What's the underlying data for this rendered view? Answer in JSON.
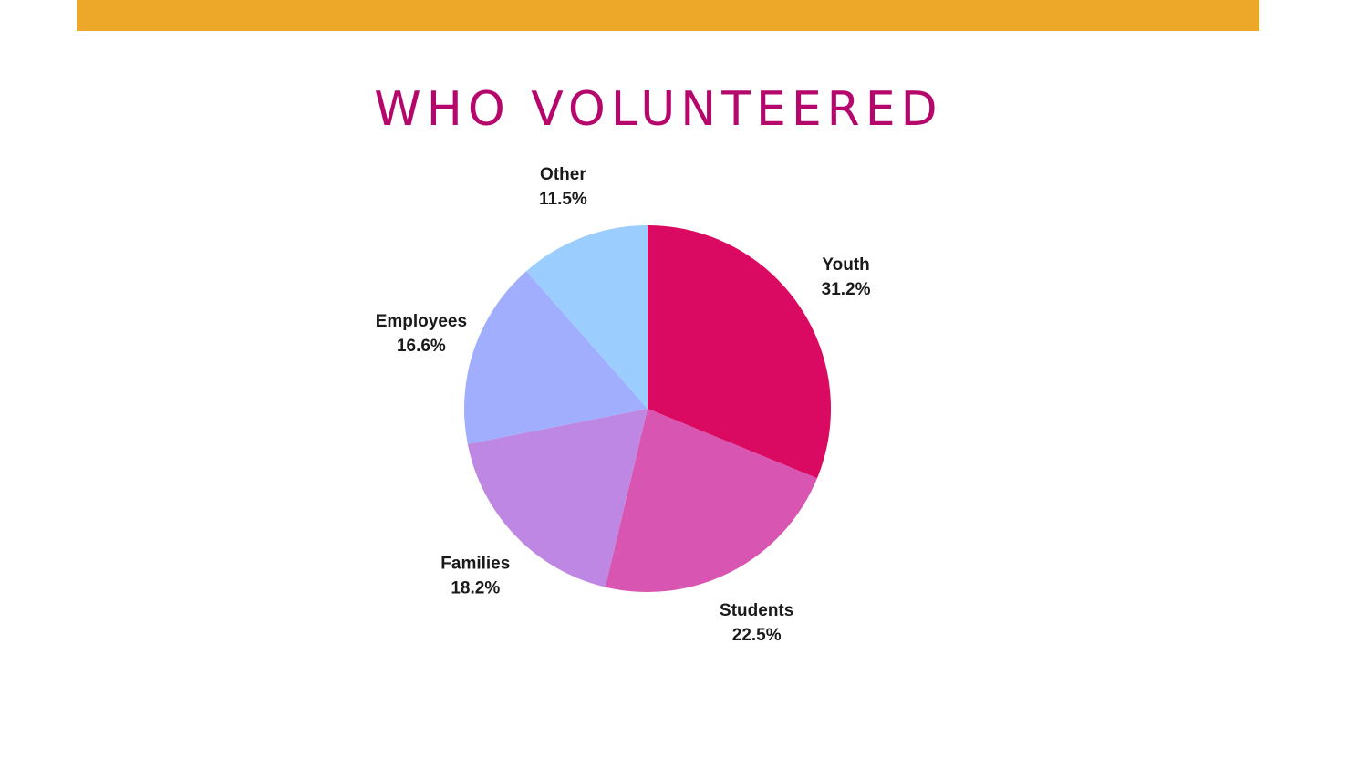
{
  "colors": {
    "top_bar": "#EDA829",
    "title": "#B5076B"
  },
  "chart_data": {
    "type": "pie",
    "title": "WHO VOLUNTEERED",
    "slices": [
      {
        "label": "Youth",
        "value": 31.2,
        "display": "31.2%",
        "color": "#DA0961"
      },
      {
        "label": "Students",
        "value": 22.5,
        "display": "22.5%",
        "color": "#D855B2"
      },
      {
        "label": "Families",
        "value": 18.2,
        "display": "18.2%",
        "color": "#BE87E4"
      },
      {
        "label": "Employees",
        "value": 16.6,
        "display": "16.6%",
        "color": "#A0AEFD"
      },
      {
        "label": "Other",
        "value": 11.5,
        "display": "11.5%",
        "color": "#9BCEFF"
      }
    ],
    "start_angle": "12 o'clock",
    "direction": "clockwise",
    "legend": "none"
  }
}
